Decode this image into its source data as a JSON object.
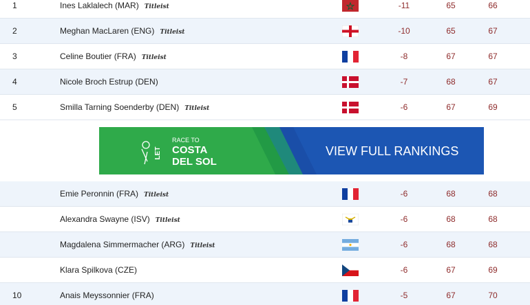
{
  "rows": [
    {
      "pos": "1",
      "name": "Ines Laklalech (MAR)",
      "sponsor": "Titleist",
      "score": "-11",
      "r1": "65",
      "r2": "66"
    },
    {
      "pos": "2",
      "name": "Meghan MacLaren (ENG)",
      "sponsor": "Titleist",
      "score": "-10",
      "r1": "65",
      "r2": "67"
    },
    {
      "pos": "3",
      "name": "Celine Boutier (FRA)",
      "sponsor": "Titleist",
      "score": "-8",
      "r1": "67",
      "r2": "67"
    },
    {
      "pos": "4",
      "name": "Nicole Broch Estrup (DEN)",
      "score": "-7",
      "r1": "68",
      "r2": "67"
    },
    {
      "pos": "5",
      "name": "Smilla Tarning Soenderby (DEN)",
      "sponsor": "Titleist",
      "score": "-6",
      "r1": "67",
      "r2": "69"
    },
    {
      "name": "Emie Peronnin (FRA)",
      "sponsor": "Titleist",
      "score": "-6",
      "r1": "68",
      "r2": "68"
    },
    {
      "name": "Alexandra Swayne (ISV)",
      "sponsor": "Titleist",
      "score": "-6",
      "r1": "68",
      "r2": "68"
    },
    {
      "name": "Magdalena Simmermacher (ARG)",
      "sponsor": "Titleist",
      "score": "-6",
      "r1": "68",
      "r2": "68"
    },
    {
      "name": "Klara Spilkova (CZE)",
      "score": "-6",
      "r1": "67",
      "r2": "69"
    },
    {
      "pos": "10",
      "name": "Anais Meyssonnier (FRA)",
      "score": "-5",
      "r1": "67",
      "r2": "70"
    }
  ],
  "banner": {
    "brand": "LET",
    "line1": "RACE TO",
    "line2": "COSTA",
    "line3": "DEL SOL",
    "cta": "VIEW FULL RANKINGS"
  }
}
